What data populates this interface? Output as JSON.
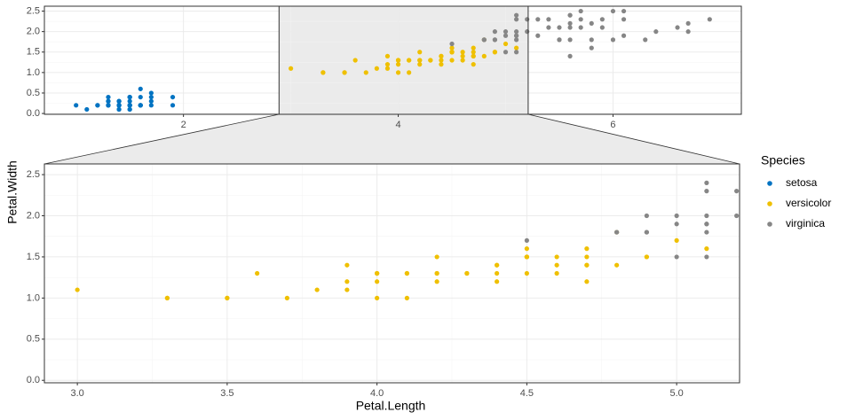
{
  "chart_data": {
    "type": "scatter",
    "x_label": "Petal.Length",
    "y_label": "Petal.Width",
    "legend_title": "Species",
    "series": [
      {
        "name": "setosa",
        "color": "#0073C2",
        "x": [
          1.4,
          1.4,
          1.3,
          1.5,
          1.4,
          1.7,
          1.4,
          1.5,
          1.4,
          1.5,
          1.5,
          1.6,
          1.4,
          1.1,
          1.2,
          1.5,
          1.3,
          1.4,
          1.7,
          1.5,
          1.7,
          1.5,
          1.0,
          1.7,
          1.9,
          1.6,
          1.6,
          1.5,
          1.4,
          1.6,
          1.6,
          1.5,
          1.5,
          1.4,
          1.5,
          1.2,
          1.3,
          1.4,
          1.3,
          1.5,
          1.3,
          1.3,
          1.3,
          1.6,
          1.9,
          1.4,
          1.6,
          1.4,
          1.5,
          1.4
        ],
        "y": [
          0.2,
          0.2,
          0.2,
          0.2,
          0.2,
          0.4,
          0.3,
          0.2,
          0.2,
          0.1,
          0.2,
          0.2,
          0.1,
          0.1,
          0.2,
          0.4,
          0.4,
          0.3,
          0.3,
          0.3,
          0.2,
          0.4,
          0.2,
          0.5,
          0.2,
          0.2,
          0.4,
          0.2,
          0.2,
          0.2,
          0.2,
          0.4,
          0.1,
          0.2,
          0.2,
          0.2,
          0.2,
          0.1,
          0.2,
          0.2,
          0.3,
          0.3,
          0.2,
          0.6,
          0.4,
          0.3,
          0.2,
          0.2,
          0.2,
          0.2
        ]
      },
      {
        "name": "versicolor",
        "color": "#EFC000",
        "x": [
          4.7,
          4.5,
          4.9,
          4.0,
          4.6,
          4.5,
          4.7,
          3.3,
          4.6,
          3.9,
          3.5,
          4.2,
          4.0,
          4.7,
          3.6,
          4.4,
          4.5,
          4.1,
          4.5,
          3.9,
          4.8,
          4.0,
          4.9,
          4.7,
          4.3,
          4.4,
          4.8,
          5.0,
          4.5,
          3.5,
          3.8,
          3.7,
          3.9,
          5.1,
          4.5,
          4.5,
          4.7,
          4.4,
          4.1,
          4.0,
          4.4,
          4.6,
          4.0,
          3.3,
          4.2,
          4.2,
          4.2,
          4.3,
          3.0,
          4.1
        ],
        "y": [
          1.4,
          1.5,
          1.5,
          1.3,
          1.5,
          1.3,
          1.6,
          1.0,
          1.3,
          1.4,
          1.0,
          1.5,
          1.0,
          1.4,
          1.3,
          1.4,
          1.5,
          1.0,
          1.5,
          1.1,
          1.8,
          1.3,
          1.5,
          1.2,
          1.3,
          1.4,
          1.4,
          1.7,
          1.5,
          1.0,
          1.1,
          1.0,
          1.2,
          1.6,
          1.5,
          1.6,
          1.5,
          1.3,
          1.3,
          1.3,
          1.2,
          1.4,
          1.2,
          1.0,
          1.3,
          1.2,
          1.3,
          1.3,
          1.1,
          1.3
        ]
      },
      {
        "name": "virginica",
        "color": "#868686",
        "x": [
          6.0,
          5.1,
          5.9,
          5.6,
          5.8,
          6.6,
          4.5,
          6.3,
          5.8,
          6.1,
          5.1,
          5.3,
          5.5,
          5.0,
          5.1,
          5.3,
          5.5,
          6.7,
          6.9,
          5.0,
          5.7,
          4.9,
          6.7,
          4.9,
          5.7,
          6.0,
          4.8,
          4.9,
          5.6,
          5.8,
          6.1,
          6.4,
          5.6,
          5.1,
          5.6,
          6.1,
          5.6,
          5.5,
          4.8,
          5.4,
          5.6,
          5.1,
          5.1,
          5.9,
          5.7,
          5.2,
          5.0,
          5.2,
          5.4,
          5.1
        ],
        "y": [
          2.5,
          1.9,
          2.1,
          1.8,
          2.2,
          2.1,
          1.7,
          1.8,
          1.8,
          2.5,
          2.0,
          1.9,
          2.1,
          2.0,
          2.4,
          2.3,
          1.8,
          2.2,
          2.3,
          1.5,
          2.3,
          2.0,
          2.0,
          1.8,
          2.1,
          1.8,
          1.8,
          1.8,
          2.1,
          1.6,
          1.9,
          2.0,
          2.2,
          1.5,
          1.4,
          2.3,
          2.4,
          1.8,
          1.8,
          2.1,
          2.4,
          2.3,
          1.9,
          2.3,
          2.5,
          2.3,
          1.9,
          2.0,
          2.3,
          1.8
        ]
      }
    ],
    "overview": {
      "xlim": [
        0.705,
        7.195
      ],
      "ylim": [
        -0.02,
        2.62
      ],
      "xticks": [
        2,
        4,
        6
      ],
      "yticks": [
        {
          "value": 0,
          "label": "0.0"
        },
        {
          "value": 0.5,
          "label": "0.5"
        },
        {
          "value": 1,
          "label": "1.0"
        },
        {
          "value": 1.5,
          "label": "1.5"
        },
        {
          "value": 2,
          "label": "2.0"
        },
        {
          "value": 2.5,
          "label": "2.5"
        }
      ]
    },
    "zoom": {
      "xlim": [
        2.89,
        5.21
      ],
      "ylim": [
        -0.03,
        2.63
      ],
      "xticks": [
        {
          "value": 3,
          "label": "3.0"
        },
        {
          "value": 3.5,
          "label": "3.5"
        },
        {
          "value": 4,
          "label": "4.0"
        },
        {
          "value": 4.5,
          "label": "4.5"
        },
        {
          "value": 5,
          "label": "5.0"
        }
      ],
      "yticks": [
        {
          "value": 0,
          "label": "0.0"
        },
        {
          "value": 0.5,
          "label": "0.5"
        },
        {
          "value": 1,
          "label": "1.0"
        },
        {
          "value": 1.5,
          "label": "1.5"
        },
        {
          "value": 2,
          "label": "2.0"
        },
        {
          "value": 2.5,
          "label": "2.5"
        }
      ]
    },
    "grid": true
  }
}
